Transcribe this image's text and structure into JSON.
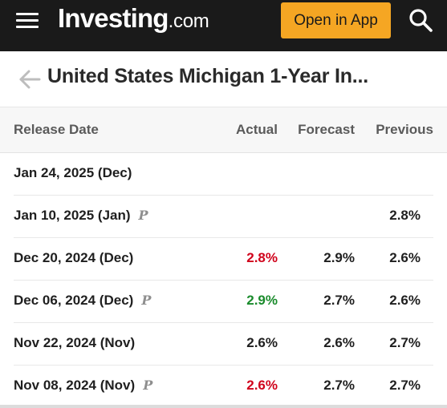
{
  "header": {
    "logo_main": "Investing",
    "logo_suffix": ".com",
    "open_app_label": "Open in App",
    "menu_icon": "hamburger-menu-icon",
    "search_icon": "search-icon",
    "background_color": "#1a1a1a",
    "accent_color": "#f5a623"
  },
  "titlebar": {
    "back_icon": "arrow-left-icon",
    "title": "United States Michigan 1-Year In..."
  },
  "table": {
    "columns": {
      "date": "Release Date",
      "actual": "Actual",
      "forecast": "Forecast",
      "previous": "Previous"
    },
    "colors": {
      "down": "#d0021b",
      "up": "#1a8b2c",
      "neutral": "#1f1f1f"
    },
    "rows": [
      {
        "date": "Jan 24, 2025 (Dec)",
        "prelim": "",
        "actual": "",
        "actual_trend": "neutral",
        "forecast": "",
        "previous": ""
      },
      {
        "date": "Jan 10, 2025 (Jan)",
        "prelim": "P",
        "actual": "",
        "actual_trend": "neutral",
        "forecast": "",
        "previous": "2.8%"
      },
      {
        "date": "Dec 20, 2024 (Dec)",
        "prelim": "",
        "actual": "2.8%",
        "actual_trend": "down",
        "forecast": "2.9%",
        "previous": "2.6%"
      },
      {
        "date": "Dec 06, 2024 (Dec)",
        "prelim": "P",
        "actual": "2.9%",
        "actual_trend": "up",
        "forecast": "2.7%",
        "previous": "2.6%"
      },
      {
        "date": "Nov 22, 2024 (Nov)",
        "prelim": "",
        "actual": "2.6%",
        "actual_trend": "neutral",
        "forecast": "2.6%",
        "previous": "2.7%"
      },
      {
        "date": "Nov 08, 2024 (Nov)",
        "prelim": "P",
        "actual": "2.6%",
        "actual_trend": "down",
        "forecast": "2.7%",
        "previous": "2.7%"
      }
    ]
  }
}
